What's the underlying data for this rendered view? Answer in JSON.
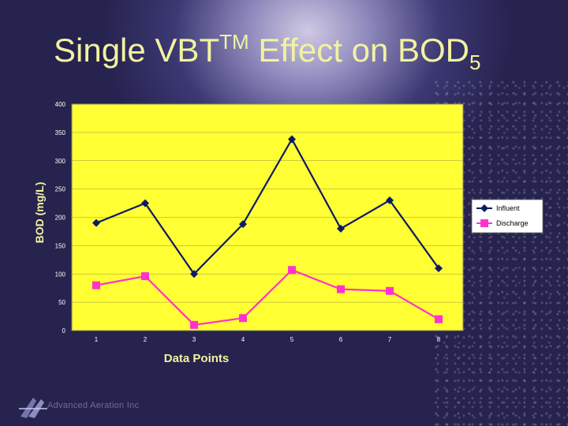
{
  "slide": {
    "title_main": "Single VBT",
    "title_super": "TM",
    "title_rest": " Effect on BOD",
    "title_sub": "5",
    "logo_text": "Advanced Aeration Inc"
  },
  "colors": {
    "plot_background": "#ffff33",
    "influent": "#0d1a66",
    "discharge": "#ff33cc"
  },
  "chart_data": {
    "type": "line",
    "xlabel": "Data Points",
    "ylabel": "BOD (mg/L)",
    "ylim": [
      0,
      400
    ],
    "yticks": [
      0,
      50,
      100,
      150,
      200,
      250,
      300,
      350,
      400
    ],
    "x": [
      1,
      2,
      3,
      4,
      5,
      6,
      7,
      8
    ],
    "grid": true,
    "legend_position": "right",
    "series": [
      {
        "name": "Influent",
        "marker": "diamond",
        "values": [
          190,
          225,
          100,
          188,
          338,
          180,
          230,
          110
        ]
      },
      {
        "name": "Discharge",
        "marker": "square",
        "values": [
          80,
          96,
          10,
          22,
          107,
          73,
          70,
          20
        ]
      }
    ]
  }
}
